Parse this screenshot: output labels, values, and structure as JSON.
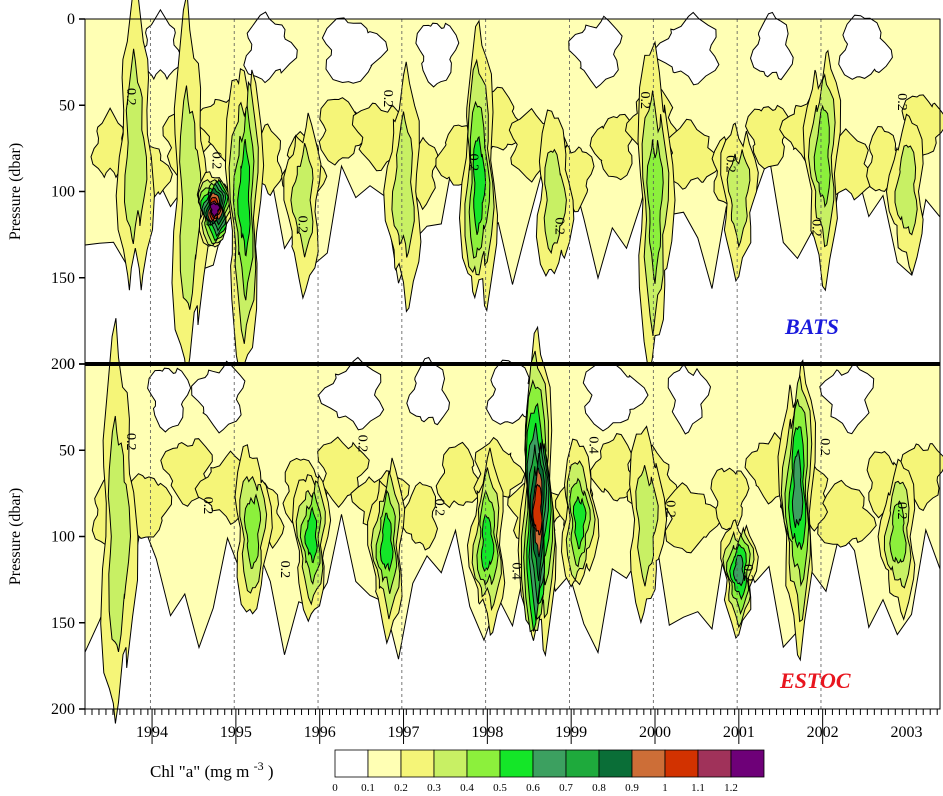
{
  "chart_data": {
    "type": "heatmap",
    "panels": [
      {
        "name": "BATS",
        "ylabel": "Pressure (dbar)",
        "yticks": [
          0,
          50,
          100,
          150,
          200
        ],
        "ylim": [
          200,
          0
        ],
        "label_color": "#1a1adc",
        "contour_labels": [
          "0.2",
          "0.2",
          "0.2",
          "0.2",
          "0.2",
          "0.2",
          "0.2",
          "0.2",
          "0.2",
          "0.2"
        ],
        "features": [
          {
            "year": 1994.3,
            "depth": [
              0,
              160
            ],
            "peak": 0.25
          },
          {
            "year": 1994.95,
            "depth": [
              10,
              200
            ],
            "peak": 0.3
          },
          {
            "year": 1995.25,
            "depth": [
              90,
              130
            ],
            "peak": 1.2
          },
          {
            "year": 1995.6,
            "depth": [
              20,
              190
            ],
            "peak": 0.45
          },
          {
            "year": 1996.3,
            "depth": [
              60,
              150
            ],
            "peak": 0.25
          },
          {
            "year": 1997.5,
            "depth": [
              40,
              160
            ],
            "peak": 0.25
          },
          {
            "year": 1998.4,
            "depth": [
              20,
              170
            ],
            "peak": 0.45
          },
          {
            "year": 1999.3,
            "depth": [
              60,
              150
            ],
            "peak": 0.3
          },
          {
            "year": 2000.5,
            "depth": [
              20,
              190
            ],
            "peak": 0.35
          },
          {
            "year": 2001.5,
            "depth": [
              60,
              140
            ],
            "peak": 0.25
          },
          {
            "year": 2002.5,
            "depth": [
              20,
              140
            ],
            "peak": 0.4
          },
          {
            "year": 2003.5,
            "depth": [
              60,
              140
            ],
            "peak": 0.3
          }
        ]
      },
      {
        "name": "ESTOC",
        "ylabel": "Pressure (dbar)",
        "yticks": [
          0,
          50,
          100,
          150,
          200
        ],
        "ylim": [
          200,
          0
        ],
        "label_color": "#e8151e",
        "contour_labels": [
          "0.2",
          "0.2",
          "0.2",
          "0.2",
          "0.2",
          "0.4",
          "0.4",
          "0.2",
          "0.2",
          "0.2",
          "0.2"
        ],
        "features": [
          {
            "year": 1994.1,
            "depth": [
              0,
              200
            ],
            "peak": 0.3
          },
          {
            "year": 1995.7,
            "depth": [
              50,
              140
            ],
            "peak": 0.35
          },
          {
            "year": 1996.4,
            "depth": [
              60,
              140
            ],
            "peak": 0.45
          },
          {
            "year": 1997.3,
            "depth": [
              60,
              150
            ],
            "peak": 0.45
          },
          {
            "year": 1998.5,
            "depth": [
              60,
              150
            ],
            "peak": 0.45
          },
          {
            "year": 1999.1,
            "depth": [
              0,
              170
            ],
            "peak": 1.0
          },
          {
            "year": 1999.6,
            "depth": [
              50,
              130
            ],
            "peak": 0.5
          },
          {
            "year": 2000.4,
            "depth": [
              40,
              140
            ],
            "peak": 0.3
          },
          {
            "year": 2001.5,
            "depth": [
              90,
              150
            ],
            "peak": 0.55
          },
          {
            "year": 2002.2,
            "depth": [
              0,
              150
            ],
            "peak": 0.55
          },
          {
            "year": 2003.4,
            "depth": [
              60,
              140
            ],
            "peak": 0.4
          }
        ]
      }
    ],
    "x_years": [
      "1994",
      "1995",
      "1996",
      "1997",
      "1998",
      "1999",
      "2000",
      "2001",
      "2002",
      "2003"
    ],
    "xlim": [
      1993.7,
      2003.9
    ],
    "colorbar": {
      "title": "Chl \"a\" (mg m",
      "title_exp": "-3",
      "title_end": ")",
      "ticks": [
        "0",
        "0.1",
        "0.2",
        "0.3",
        "0.4",
        "0.5",
        "0.6",
        "0.7",
        "0.8",
        "0.9",
        "1",
        "1.1",
        "1.2"
      ],
      "colors": [
        "#ffffff",
        "#ffffb4",
        "#f5f578",
        "#c8f064",
        "#8cf03c",
        "#14e628",
        "#3ca060",
        "#1eaa3c",
        "#0a6e37",
        "#cd6e37",
        "#d23200",
        "#a0325a",
        "#6e0078"
      ]
    }
  }
}
